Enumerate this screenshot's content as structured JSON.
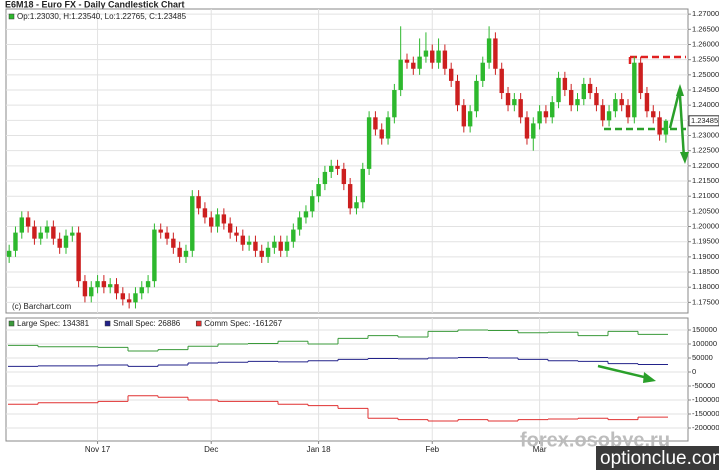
{
  "chart_data": [
    {
      "type": "candlestick",
      "title": "E6M18 - Euro FX - Daily Candlestick Chart",
      "info": "Op:1.23030, H:1.23540, Lo:1.22765, C:1.23485",
      "credit": "(c) Barchart.com",
      "price_tag": "1.23485",
      "up_color": "#2db82d",
      "down_color": "#cc1f1f",
      "grid": true,
      "xlim": [
        -0.5,
        107.5
      ],
      "xticks": [
        {
          "value": 14,
          "label": "Nov 17"
        },
        {
          "value": 32,
          "label": "Dec"
        },
        {
          "value": 49,
          "label": "Jan 18"
        },
        {
          "value": 67,
          "label": "Feb"
        },
        {
          "value": 84,
          "label": "Mar"
        }
      ],
      "ylim": [
        1.1715,
        1.2717
      ],
      "yticks": [
        {
          "value": 1.175,
          "label": "1.17500"
        },
        {
          "value": 1.18,
          "label": "1.18000"
        },
        {
          "value": 1.185,
          "label": "1.18500"
        },
        {
          "value": 1.19,
          "label": "1.19000"
        },
        {
          "value": 1.195,
          "label": "1.19500"
        },
        {
          "value": 1.2,
          "label": "1.20000"
        },
        {
          "value": 1.205,
          "label": "1.20500"
        },
        {
          "value": 1.21,
          "label": "1.21000"
        },
        {
          "value": 1.215,
          "label": "1.21500"
        },
        {
          "value": 1.22,
          "label": "1.22000"
        },
        {
          "value": 1.225,
          "label": "1.22500"
        },
        {
          "value": 1.23,
          "label": "1.23000"
        },
        {
          "value": 1.235,
          "label": "1.23500"
        },
        {
          "value": 1.24,
          "label": "1.24000"
        },
        {
          "value": 1.245,
          "label": "1.24500"
        },
        {
          "value": 1.25,
          "label": "1.25000"
        },
        {
          "value": 1.255,
          "label": "1.25500"
        },
        {
          "value": 1.26,
          "label": "1.26000"
        },
        {
          "value": 1.265,
          "label": "1.26500"
        },
        {
          "value": 1.27,
          "label": "1.27000"
        }
      ],
      "open": [
        1.19,
        1.192,
        1.198,
        1.203,
        1.2,
        1.196,
        1.198,
        1.2,
        1.196,
        1.193,
        1.197,
        1.198,
        1.182,
        1.177,
        1.18,
        1.182,
        1.18,
        1.181,
        1.178,
        1.176,
        1.175,
        1.178,
        1.18,
        1.182,
        1.199,
        1.198,
        1.196,
        1.193,
        1.19,
        1.192,
        1.21,
        1.206,
        1.203,
        1.2,
        1.204,
        1.201,
        1.198,
        1.197,
        1.194,
        1.195,
        1.192,
        1.19,
        1.193,
        1.195,
        1.192,
        1.195,
        1.199,
        1.203,
        1.205,
        1.21,
        1.214,
        1.218,
        1.22,
        1.219,
        1.214,
        1.206,
        1.208,
        1.219,
        1.236,
        1.232,
        1.229,
        1.236,
        1.245,
        1.255,
        1.254,
        1.252,
        1.256,
        1.258,
        1.254,
        1.258,
        1.252,
        1.248,
        1.24,
        1.233,
        1.238,
        1.248,
        1.254,
        1.262,
        1.252,
        1.244,
        1.24,
        1.242,
        1.236,
        1.229,
        1.234,
        1.238,
        1.236,
        1.241,
        1.249,
        1.245,
        1.24,
        1.242,
        1.247,
        1.244,
        1.24,
        1.235,
        1.238,
        1.242,
        1.24,
        1.236,
        1.254,
        1.244,
        1.238,
        1.236,
        1.2303
      ],
      "high": [
        1.194,
        1.2,
        1.205,
        1.205,
        1.202,
        1.2,
        1.202,
        1.202,
        1.198,
        1.199,
        1.2,
        1.2,
        1.184,
        1.182,
        1.184,
        1.184,
        1.183,
        1.183,
        1.18,
        1.178,
        1.18,
        1.182,
        1.184,
        1.201,
        1.201,
        1.2,
        1.198,
        1.195,
        1.194,
        1.212,
        1.212,
        1.208,
        1.205,
        1.206,
        1.206,
        1.203,
        1.2,
        1.199,
        1.197,
        1.197,
        1.194,
        1.195,
        1.197,
        1.197,
        1.197,
        1.201,
        1.205,
        1.207,
        1.212,
        1.216,
        1.22,
        1.222,
        1.222,
        1.221,
        1.216,
        1.21,
        1.221,
        1.238,
        1.238,
        1.234,
        1.238,
        1.247,
        1.266,
        1.257,
        1.256,
        1.262,
        1.264,
        1.26,
        1.262,
        1.26,
        1.254,
        1.25,
        1.242,
        1.24,
        1.25,
        1.256,
        1.266,
        1.264,
        1.254,
        1.246,
        1.244,
        1.244,
        1.238,
        1.236,
        1.24,
        1.24,
        1.243,
        1.251,
        1.251,
        1.247,
        1.244,
        1.249,
        1.249,
        1.246,
        1.242,
        1.24,
        1.244,
        1.244,
        1.242,
        1.256,
        1.256,
        1.246,
        1.24,
        1.238,
        1.2354
      ],
      "low": [
        1.188,
        1.19,
        1.196,
        1.198,
        1.194,
        1.194,
        1.196,
        1.194,
        1.191,
        1.191,
        1.195,
        1.18,
        1.175,
        1.175,
        1.178,
        1.178,
        1.178,
        1.176,
        1.174,
        1.173,
        1.173,
        1.176,
        1.178,
        1.18,
        1.196,
        1.194,
        1.191,
        1.188,
        1.188,
        1.19,
        1.204,
        1.201,
        1.198,
        1.198,
        1.199,
        1.196,
        1.195,
        1.192,
        1.192,
        1.19,
        1.188,
        1.188,
        1.191,
        1.19,
        1.19,
        1.193,
        1.197,
        1.201,
        1.203,
        1.208,
        1.212,
        1.216,
        1.217,
        1.212,
        1.204,
        1.204,
        1.206,
        1.217,
        1.23,
        1.227,
        1.227,
        1.234,
        1.243,
        1.252,
        1.25,
        1.25,
        1.254,
        1.252,
        1.252,
        1.25,
        1.246,
        1.238,
        1.231,
        1.231,
        1.236,
        1.246,
        1.252,
        1.25,
        1.242,
        1.238,
        1.238,
        1.234,
        1.227,
        1.225,
        1.232,
        1.234,
        1.234,
        1.239,
        1.243,
        1.238,
        1.238,
        1.24,
        1.242,
        1.238,
        1.233,
        1.233,
        1.236,
        1.238,
        1.234,
        1.234,
        1.242,
        1.236,
        1.234,
        1.2283,
        1.22765
      ],
      "close": [
        1.192,
        1.198,
        1.203,
        1.2,
        1.196,
        1.198,
        1.2,
        1.196,
        1.193,
        1.197,
        1.198,
        1.182,
        1.177,
        1.18,
        1.182,
        1.18,
        1.181,
        1.178,
        1.176,
        1.175,
        1.178,
        1.18,
        1.182,
        1.199,
        1.198,
        1.196,
        1.193,
        1.19,
        1.192,
        1.21,
        1.206,
        1.203,
        1.2,
        1.204,
        1.201,
        1.198,
        1.197,
        1.194,
        1.195,
        1.192,
        1.19,
        1.193,
        1.195,
        1.192,
        1.195,
        1.199,
        1.203,
        1.205,
        1.21,
        1.214,
        1.218,
        1.22,
        1.219,
        1.214,
        1.206,
        1.208,
        1.219,
        1.236,
        1.232,
        1.229,
        1.236,
        1.245,
        1.255,
        1.254,
        1.252,
        1.256,
        1.258,
        1.254,
        1.258,
        1.252,
        1.248,
        1.24,
        1.233,
        1.238,
        1.248,
        1.254,
        1.262,
        1.252,
        1.244,
        1.24,
        1.242,
        1.236,
        1.229,
        1.234,
        1.238,
        1.236,
        1.241,
        1.249,
        1.245,
        1.24,
        1.242,
        1.247,
        1.244,
        1.24,
        1.235,
        1.238,
        1.242,
        1.24,
        1.236,
        1.254,
        1.244,
        1.238,
        1.236,
        1.2303,
        1.23485
      ]
    },
    {
      "type": "line",
      "step": true,
      "categories": [
        null,
        null,
        null,
        null,
        null,
        null,
        null,
        null,
        null,
        null,
        null,
        null,
        null,
        null,
        null,
        null,
        null,
        null,
        null,
        null,
        null,
        null
      ],
      "ylim": [
        -240000,
        180000
      ],
      "yticks": [
        150000,
        100000,
        50000,
        0,
        -50000,
        -100000,
        -150000,
        -200000
      ],
      "series": [
        {
          "name": "Large Spec: 134381",
          "color": "#3a9a3a",
          "values": [
            95000,
            90000,
            90000,
            88000,
            75000,
            80000,
            92000,
            100000,
            102000,
            110000,
            100000,
            120000,
            130000,
            125000,
            145000,
            150000,
            148000,
            140000,
            142000,
            130000,
            145000,
            134381
          ]
        },
        {
          "name": "Small Spec: 26886",
          "color": "#22228a",
          "values": [
            20000,
            22000,
            22000,
            25000,
            20000,
            25000,
            32000,
            35000,
            38000,
            36000,
            40000,
            45000,
            48000,
            47000,
            50000,
            52000,
            50000,
            45000,
            40000,
            38000,
            30000,
            26886
          ]
        },
        {
          "name": "Comm Spec: -161267",
          "color": "#e03030",
          "values": [
            -115000,
            -110000,
            -110000,
            -105000,
            -85000,
            -90000,
            -100000,
            -105000,
            -105000,
            -115000,
            -120000,
            -130000,
            -165000,
            -170000,
            -175000,
            -170000,
            -175000,
            -170000,
            -168000,
            -165000,
            -170000,
            -161267
          ]
        }
      ]
    }
  ],
  "watermarks": [
    "forex.osobye.ru",
    "optionclue.com"
  ]
}
